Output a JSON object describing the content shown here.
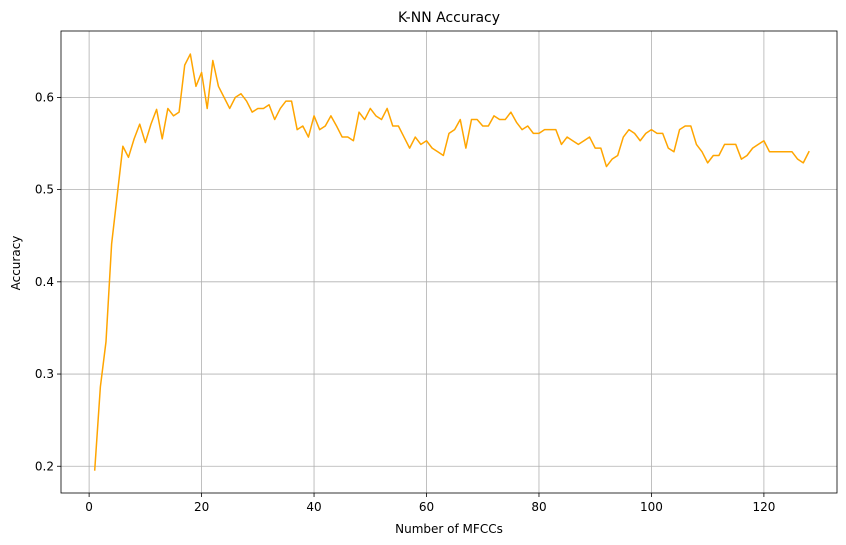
{
  "chart_data": {
    "type": "line",
    "title": "K-NN Accuracy",
    "xlabel": "Number of MFCCs",
    "ylabel": "Accuracy",
    "xlim": [
      -5,
      133
    ],
    "ylim": [
      0.171,
      0.672
    ],
    "xticks": [
      0,
      20,
      40,
      60,
      80,
      100,
      120
    ],
    "yticks": [
      0.2,
      0.3,
      0.4,
      0.5,
      0.6
    ],
    "ytick_labels": [
      "0.2",
      "0.3",
      "0.4",
      "0.5",
      "0.6"
    ],
    "grid": true,
    "line_color": "#FFA500",
    "series": [
      {
        "x": [
          1,
          2,
          3,
          4,
          5,
          6,
          7,
          8,
          9,
          10,
          11,
          12,
          13,
          14,
          15,
          16,
          17,
          18,
          19,
          20,
          21,
          22,
          23,
          24,
          25,
          26,
          27,
          28,
          29,
          30,
          31,
          32,
          33,
          34,
          35,
          36,
          37,
          38,
          39,
          40,
          41,
          42,
          43,
          44,
          45,
          46,
          47,
          48,
          49,
          50,
          51,
          52,
          53,
          54,
          55,
          56,
          57,
          58,
          59,
          60,
          61,
          62,
          63,
          64,
          65,
          66,
          67,
          68,
          69,
          70,
          71,
          72,
          73,
          74,
          75,
          76,
          77,
          78,
          79,
          80,
          81,
          82,
          83,
          84,
          85,
          86,
          87,
          88,
          89,
          90,
          91,
          92,
          93,
          94,
          95,
          96,
          97,
          98,
          99,
          100,
          101,
          102,
          103,
          104,
          105,
          106,
          107,
          108,
          109,
          110,
          111,
          112,
          113,
          114,
          115,
          116,
          117,
          118,
          119,
          120,
          121,
          122,
          123,
          124,
          125,
          126,
          127,
          128
        ],
        "y": [
          0.196,
          0.286,
          0.335,
          0.441,
          0.494,
          0.547,
          0.535,
          0.555,
          0.571,
          0.551,
          0.571,
          0.587,
          0.555,
          0.588,
          0.58,
          0.584,
          0.635,
          0.647,
          0.612,
          0.627,
          0.588,
          0.64,
          0.612,
          0.6,
          0.588,
          0.6,
          0.604,
          0.596,
          0.584,
          0.588,
          0.588,
          0.592,
          0.576,
          0.588,
          0.596,
          0.596,
          0.565,
          0.569,
          0.557,
          0.58,
          0.565,
          0.569,
          0.58,
          0.569,
          0.557,
          0.557,
          0.553,
          0.584,
          0.576,
          0.588,
          0.58,
          0.576,
          0.588,
          0.569,
          0.569,
          0.557,
          0.545,
          0.557,
          0.549,
          0.553,
          0.545,
          0.541,
          0.537,
          0.561,
          0.565,
          0.576,
          0.545,
          0.576,
          0.576,
          0.569,
          0.569,
          0.58,
          0.576,
          0.576,
          0.584,
          0.573,
          0.565,
          0.569,
          0.561,
          0.561,
          0.565,
          0.565,
          0.565,
          0.549,
          0.557,
          0.553,
          0.549,
          0.553,
          0.557,
          0.545,
          0.545,
          0.525,
          0.533,
          0.537,
          0.557,
          0.565,
          0.561,
          0.553,
          0.561,
          0.565,
          0.561,
          0.561,
          0.545,
          0.541,
          0.565,
          0.569,
          0.569,
          0.549,
          0.541,
          0.529,
          0.537,
          0.537,
          0.549,
          0.549,
          0.549,
          0.533,
          0.537,
          0.545,
          0.549,
          0.553,
          0.541,
          0.541,
          0.541,
          0.541,
          0.541,
          0.533,
          0.529,
          0.541
        ]
      }
    ]
  }
}
